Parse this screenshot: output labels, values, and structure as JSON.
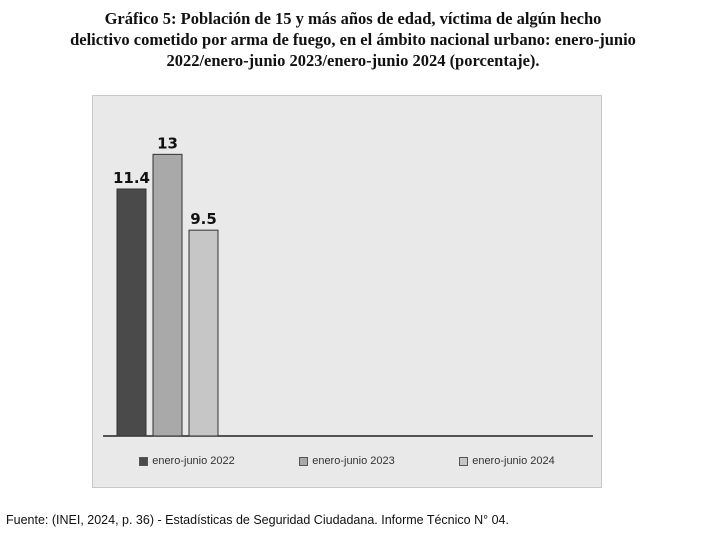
{
  "title_lines": [
    "Gráfico 5: Población de 15 y más años de edad, víctima de algún hecho",
    "delictivo cometido por arma de fuego, en el ámbito nacional urbano: enero-junio",
    "2022/enero-junio 2023/enero-junio 2024 (porcentaje)."
  ],
  "source": "Fuente: (INEI, 2024, p. 36) - Estadísticas de Seguridad Ciudadana. Informe Técnico N° 04.",
  "chart_data": {
    "type": "bar",
    "title": "Gráfico 5: Población de 15 y más años de edad, víctima de algún hecho delictivo cometido por arma de fuego, en el ámbito nacional urbano: enero-junio 2022/enero-junio 2023/enero-junio 2024 (porcentaje).",
    "xlabel": "",
    "ylabel": "",
    "ylim": [
      0,
      15
    ],
    "grid": false,
    "legend_position": "bottom",
    "series": [
      {
        "name": "enero-junio 2022",
        "values": [
          11.4
        ],
        "value_label": "11.4",
        "color": "#4a4a4a"
      },
      {
        "name": "enero-junio 2023",
        "values": [
          13
        ],
        "value_label": "13",
        "color": "#a9a9a9"
      },
      {
        "name": "enero-junio 2024",
        "values": [
          9.5
        ],
        "value_label": "9.5",
        "color": "#c6c6c6"
      }
    ]
  }
}
